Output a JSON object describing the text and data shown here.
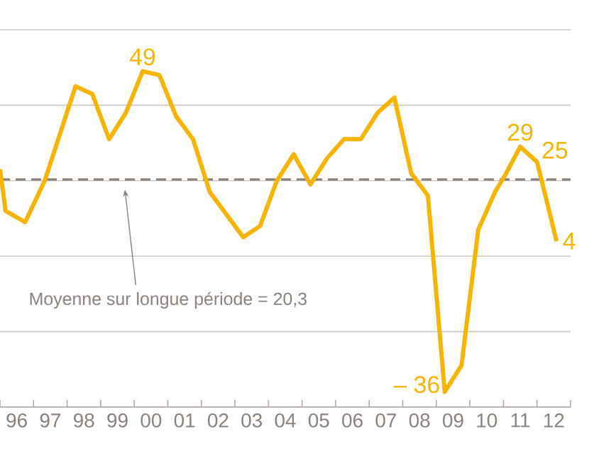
{
  "chart_data": {
    "type": "line",
    "x": [
      "1996-01",
      "1996-03",
      "1996-10",
      "1997-05",
      "1998-04",
      "1998-10",
      "1999-04",
      "1999-10",
      "2000-04",
      "2000-10",
      "2001-04",
      "2001-10",
      "2002-04",
      "2002-10",
      "2003-04",
      "2003-10",
      "2004-04",
      "2004-10",
      "2005-04",
      "2005-10",
      "2006-04",
      "2006-10",
      "2007-04",
      "2007-10",
      "2008-04",
      "2008-10",
      "2009-04",
      "2009-10",
      "2010-04",
      "2010-10",
      "2011-02",
      "2011-07",
      "2012-01",
      "2012-08"
    ],
    "values": [
      23,
      12,
      9,
      20,
      45,
      43,
      31,
      38,
      49,
      48,
      37,
      31,
      17,
      11,
      5,
      8,
      20,
      27,
      19,
      26,
      31,
      31,
      38,
      42,
      22,
      16,
      -36,
      -29,
      7,
      17,
      22,
      29,
      25,
      4
    ],
    "value_labels": [
      null,
      null,
      null,
      null,
      null,
      null,
      null,
      null,
      "49",
      null,
      null,
      null,
      null,
      null,
      null,
      null,
      null,
      null,
      null,
      null,
      null,
      null,
      null,
      null,
      null,
      null,
      "– 36",
      null,
      null,
      null,
      null,
      "29",
      "25",
      "4"
    ],
    "color": "#f5b400",
    "marker": "none",
    "line_style": "solid",
    "xlim": [
      "1996-01",
      "2013-01"
    ],
    "xticks": [
      {
        "value": "1996-01",
        "label": null
      },
      {
        "value": "1996-07",
        "label": "96"
      },
      {
        "value": "1997-01",
        "label": null
      },
      {
        "value": "1997-07",
        "label": "97"
      },
      {
        "value": "1998-01",
        "label": null
      },
      {
        "value": "1998-07",
        "label": "98"
      },
      {
        "value": "1999-01",
        "label": null
      },
      {
        "value": "1999-07",
        "label": "99"
      },
      {
        "value": "2000-01",
        "label": null
      },
      {
        "value": "2000-07",
        "label": "00"
      },
      {
        "value": "2001-01",
        "label": null
      },
      {
        "value": "2001-07",
        "label": "01"
      },
      {
        "value": "2002-01",
        "label": null
      },
      {
        "value": "2002-07",
        "label": "02"
      },
      {
        "value": "2003-01",
        "label": null
      },
      {
        "value": "2003-07",
        "label": "03"
      },
      {
        "value": "2004-01",
        "label": null
      },
      {
        "value": "2004-07",
        "label": "04"
      },
      {
        "value": "2005-01",
        "label": null
      },
      {
        "value": "2005-07",
        "label": "05"
      },
      {
        "value": "2006-01",
        "label": null
      },
      {
        "value": "2006-07",
        "label": "06"
      },
      {
        "value": "2007-01",
        "label": null
      },
      {
        "value": "2007-07",
        "label": "07"
      },
      {
        "value": "2008-01",
        "label": null
      },
      {
        "value": "2008-07",
        "label": "08"
      },
      {
        "value": "2009-01",
        "label": null
      },
      {
        "value": "2009-07",
        "label": "09"
      },
      {
        "value": "2010-01",
        "label": null
      },
      {
        "value": "2010-07",
        "label": "10"
      },
      {
        "value": "2011-01",
        "label": null
      },
      {
        "value": "2011-07",
        "label": "11"
      },
      {
        "value": "2012-01",
        "label": null
      },
      {
        "value": "2012-07",
        "label": "12"
      },
      {
        "value": "2013-01",
        "label": null
      }
    ],
    "ylim": [
      -40,
      60
    ],
    "yticks": [
      {
        "value": -40,
        "label": null
      },
      {
        "value": -20,
        "label": null
      },
      {
        "value": 0,
        "label": null
      },
      {
        "value": 20,
        "label": null
      },
      {
        "value": 40,
        "label": null
      },
      {
        "value": 60,
        "label": null
      }
    ],
    "tick_labels": "x",
    "grid": "y",
    "ref_lines": [
      {
        "axis": "y",
        "value": 20.3,
        "label": "Moyenne sur longue période = 20,3",
        "color": "#8c827d",
        "line_style": "dashed"
      }
    ]
  }
}
